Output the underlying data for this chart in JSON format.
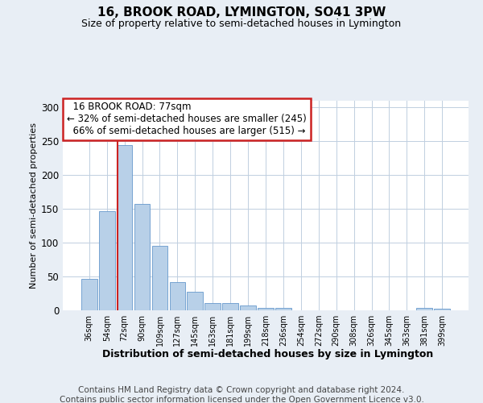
{
  "title": "16, BROOK ROAD, LYMINGTON, SO41 3PW",
  "subtitle": "Size of property relative to semi-detached houses in Lymington",
  "xlabel": "Distribution of semi-detached houses by size in Lymington",
  "ylabel": "Number of semi-detached properties",
  "footnote1": "Contains HM Land Registry data © Crown copyright and database right 2024.",
  "footnote2": "Contains public sector information licensed under the Open Government Licence v3.0.",
  "bins": [
    "36sqm",
    "54sqm",
    "72sqm",
    "90sqm",
    "109sqm",
    "127sqm",
    "145sqm",
    "163sqm",
    "181sqm",
    "199sqm",
    "218sqm",
    "236sqm",
    "254sqm",
    "272sqm",
    "290sqm",
    "308sqm",
    "326sqm",
    "345sqm",
    "363sqm",
    "381sqm",
    "399sqm"
  ],
  "values": [
    47,
    147,
    245,
    157,
    95,
    42,
    27,
    11,
    11,
    7,
    4,
    3,
    0,
    0,
    0,
    0,
    0,
    0,
    0,
    4,
    2
  ],
  "bar_color": "#b8d0e8",
  "bar_edge_color": "#6699cc",
  "vline_bar_index": 2,
  "vline_color": "#cc2222",
  "property_sqm": 77,
  "pct_smaller": 32,
  "pct_larger": 66,
  "n_smaller": 245,
  "n_larger": 515,
  "annotation_box_color": "white",
  "annotation_box_edge": "#cc2222",
  "ylim": [
    0,
    310
  ],
  "yticks": [
    0,
    50,
    100,
    150,
    200,
    250,
    300
  ],
  "bg_color": "#e8eef5",
  "plot_bg_color": "white",
  "grid_color": "#c0cfe0",
  "title_fontsize": 11,
  "subtitle_fontsize": 9,
  "annot_fontsize": 8.5,
  "xlabel_fontsize": 9,
  "ylabel_fontsize": 8,
  "footnote_fontsize": 7.5
}
